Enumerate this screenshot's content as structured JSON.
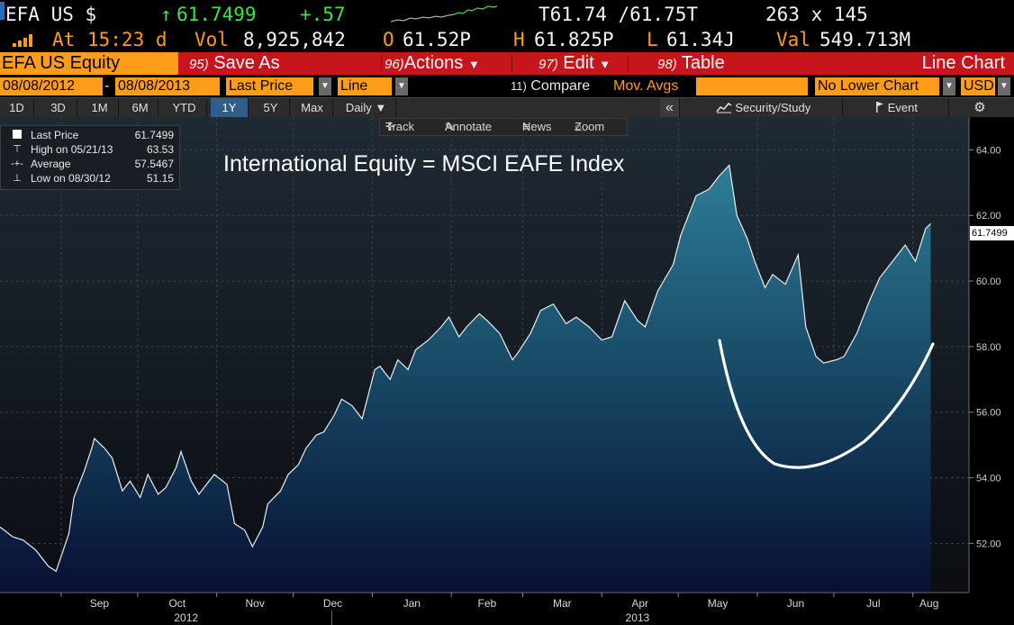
{
  "ticker": {
    "symbol": "EFA US $",
    "arrow": "↑",
    "last": "61.7499",
    "change": "+.57",
    "bid_ask": "T61.74 /61.75T",
    "size": "263 x 145",
    "at_label": "At",
    "time": "15:23 d",
    "vol_label": "Vol",
    "volume": "8,925,842",
    "open_label": "O",
    "open": "61.52P",
    "high_label": "H",
    "high": "61.825P",
    "low_label": "L",
    "low": "61.34J",
    "val_label": "Val",
    "value": "549.713M"
  },
  "function_bar": {
    "security": "EFA US Equity",
    "items": [
      {
        "num": "95)",
        "label": "Save As"
      },
      {
        "num": "96)",
        "label": "Actions"
      },
      {
        "num": "97)",
        "label": "Edit"
      },
      {
        "num": "98)",
        "label": "Table"
      }
    ],
    "chart_type": "Line Chart"
  },
  "inputs": {
    "start_date": "08/08/2012",
    "dash": "-",
    "end_date": "08/08/2013",
    "field": "Last Price",
    "style": "Line",
    "compare_num": "11)",
    "compare": "Compare",
    "mov_avgs": "Mov. Avgs",
    "lower_chart": "No Lower Chart",
    "currency": "USD"
  },
  "toolbar": {
    "periods": [
      "1D",
      "3D",
      "1M",
      "6M",
      "YTD",
      "1Y",
      "5Y",
      "Max"
    ],
    "active": "1Y",
    "frequency": "Daily ▼",
    "collapse": "«",
    "security_study": "Security/Study",
    "event": "Event",
    "settings": "⚙"
  },
  "chart_tools": {
    "track": "Track",
    "annotate": "Annotate",
    "news": "News",
    "zoom": "Zoom"
  },
  "legend": {
    "last_price_label": "Last Price",
    "last_price": "61.7499",
    "high_label": "High on 05/21/13",
    "high": "63.53",
    "average_label": "Average",
    "average": "57.5467",
    "low_label": "Low on 08/30/12",
    "low": "51.15"
  },
  "annotation": "International Equity = MSCI EAFE Index",
  "last_price_tag": "61.7499",
  "colors": {
    "accent_orange": "#ff9c1a",
    "function_red": "#c8141c",
    "price_green": "#3ee34a",
    "area_top": "#2e7e98",
    "area_bottom": "#081033"
  },
  "chart_data": {
    "type": "area",
    "title": "",
    "xlabel": "",
    "ylabel": "",
    "ylim": [
      50.5,
      65
    ],
    "yticks": [
      "64.00",
      "62.00",
      "60.00",
      "58.00",
      "56.00",
      "54.00",
      "52.00"
    ],
    "ytick_values": [
      64,
      62,
      60,
      58,
      56,
      54,
      52
    ],
    "xticks": [
      {
        "label": "Sep",
        "date": "2012-09-01"
      },
      {
        "label": "Oct",
        "date": "2012-10-01"
      },
      {
        "label": "Nov",
        "date": "2012-11-01"
      },
      {
        "label": "Dec",
        "date": "2012-12-01"
      },
      {
        "label": "Jan",
        "date": "2013-01-01"
      },
      {
        "label": "Feb",
        "date": "2013-02-01"
      },
      {
        "label": "Mar",
        "date": "2013-03-01"
      },
      {
        "label": "Apr",
        "date": "2013-04-01"
      },
      {
        "label": "May",
        "date": "2013-05-01"
      },
      {
        "label": "Jun",
        "date": "2013-06-01"
      },
      {
        "label": "Jul",
        "date": "2013-07-01"
      },
      {
        "label": "Aug",
        "date": "2013-08-01"
      }
    ],
    "year_labels": [
      {
        "label": "2012",
        "date": "2012-10-20"
      },
      {
        "label": "2013",
        "date": "2013-04-15"
      }
    ],
    "x_start": "2012-08-08",
    "x_end": "2013-08-23",
    "grid": true,
    "series": [
      {
        "points": [
          [
            "2012-08-08",
            52.5
          ],
          [
            "2012-08-13",
            52.2
          ],
          [
            "2012-08-17",
            52.1
          ],
          [
            "2012-08-22",
            51.8
          ],
          [
            "2012-08-27",
            51.3
          ],
          [
            "2012-08-30",
            51.15
          ],
          [
            "2012-09-04",
            52.3
          ],
          [
            "2012-09-06",
            53.4
          ],
          [
            "2012-09-10",
            54.2
          ],
          [
            "2012-09-13",
            54.9
          ],
          [
            "2012-09-14",
            55.2
          ],
          [
            "2012-09-18",
            54.9
          ],
          [
            "2012-09-21",
            54.6
          ],
          [
            "2012-09-25",
            53.6
          ],
          [
            "2012-09-28",
            53.9
          ],
          [
            "2012-10-02",
            53.4
          ],
          [
            "2012-10-05",
            54.1
          ],
          [
            "2012-10-09",
            53.5
          ],
          [
            "2012-10-12",
            53.7
          ],
          [
            "2012-10-16",
            54.3
          ],
          [
            "2012-10-18",
            54.8
          ],
          [
            "2012-10-22",
            53.9
          ],
          [
            "2012-10-25",
            53.5
          ],
          [
            "2012-10-31",
            54.1
          ],
          [
            "2012-11-05",
            53.8
          ],
          [
            "2012-11-08",
            52.6
          ],
          [
            "2012-11-12",
            52.4
          ],
          [
            "2012-11-15",
            51.9
          ],
          [
            "2012-11-19",
            52.5
          ],
          [
            "2012-11-21",
            53.2
          ],
          [
            "2012-11-26",
            53.6
          ],
          [
            "2012-11-29",
            54.1
          ],
          [
            "2012-12-03",
            54.4
          ],
          [
            "2012-12-06",
            54.9
          ],
          [
            "2012-12-10",
            55.3
          ],
          [
            "2012-12-13",
            55.4
          ],
          [
            "2012-12-17",
            55.9
          ],
          [
            "2012-12-20",
            56.4
          ],
          [
            "2012-12-24",
            56.2
          ],
          [
            "2012-12-28",
            55.8
          ],
          [
            "2013-01-02",
            57.3
          ],
          [
            "2013-01-04",
            57.4
          ],
          [
            "2013-01-08",
            57.0
          ],
          [
            "2013-01-11",
            57.6
          ],
          [
            "2013-01-15",
            57.3
          ],
          [
            "2013-01-18",
            57.9
          ],
          [
            "2013-01-23",
            58.2
          ],
          [
            "2013-01-28",
            58.6
          ],
          [
            "2013-01-31",
            58.9
          ],
          [
            "2013-02-04",
            58.3
          ],
          [
            "2013-02-07",
            58.6
          ],
          [
            "2013-02-12",
            59.0
          ],
          [
            "2013-02-15",
            58.8
          ],
          [
            "2013-02-20",
            58.4
          ],
          [
            "2013-02-25",
            57.6
          ],
          [
            "2013-02-27",
            57.8
          ],
          [
            "2013-03-04",
            58.4
          ],
          [
            "2013-03-08",
            59.1
          ],
          [
            "2013-03-13",
            59.3
          ],
          [
            "2013-03-18",
            58.7
          ],
          [
            "2013-03-22",
            58.9
          ],
          [
            "2013-03-27",
            58.6
          ],
          [
            "2013-04-01",
            58.2
          ],
          [
            "2013-04-05",
            58.3
          ],
          [
            "2013-04-10",
            59.4
          ],
          [
            "2013-04-15",
            58.8
          ],
          [
            "2013-04-18",
            58.6
          ],
          [
            "2013-04-23",
            59.7
          ],
          [
            "2013-04-29",
            60.5
          ],
          [
            "2013-05-02",
            61.4
          ],
          [
            "2013-05-08",
            62.6
          ],
          [
            "2013-05-13",
            62.8
          ],
          [
            "2013-05-17",
            63.2
          ],
          [
            "2013-05-21",
            63.53
          ],
          [
            "2013-05-24",
            62.0
          ],
          [
            "2013-05-28",
            61.3
          ],
          [
            "2013-05-31",
            60.6
          ],
          [
            "2013-06-04",
            59.8
          ],
          [
            "2013-06-07",
            60.2
          ],
          [
            "2013-06-12",
            59.9
          ],
          [
            "2013-06-17",
            60.8
          ],
          [
            "2013-06-20",
            58.6
          ],
          [
            "2013-06-24",
            57.7
          ],
          [
            "2013-06-27",
            57.5
          ],
          [
            "2013-07-02",
            57.6
          ],
          [
            "2013-07-05",
            57.7
          ],
          [
            "2013-07-10",
            58.4
          ],
          [
            "2013-07-15",
            59.4
          ],
          [
            "2013-07-19",
            60.1
          ],
          [
            "2013-07-24",
            60.6
          ],
          [
            "2013-07-29",
            61.1
          ],
          [
            "2013-08-02",
            60.6
          ],
          [
            "2013-08-06",
            61.6
          ],
          [
            "2013-08-08",
            61.75
          ]
        ]
      }
    ]
  }
}
